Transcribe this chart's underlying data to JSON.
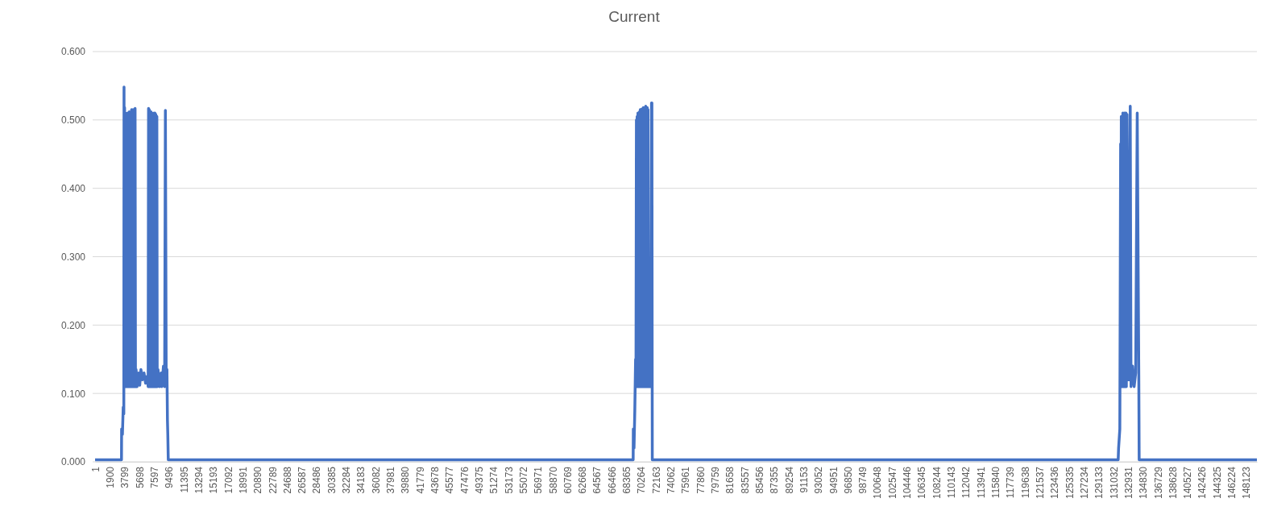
{
  "chart_data": {
    "type": "line",
    "title": "Current",
    "xlim": [
      1,
      149500
    ],
    "xticks": [
      1,
      1900,
      3799,
      5698,
      7597,
      9496,
      11395,
      13294,
      15193,
      17092,
      18991,
      20890,
      22789,
      24688,
      26587,
      28486,
      30385,
      32284,
      34183,
      36082,
      37981,
      39880,
      41779,
      43678,
      45577,
      47476,
      49375,
      51274,
      53173,
      55072,
      56971,
      58870,
      60769,
      62668,
      64567,
      66466,
      68365,
      70264,
      72163,
      74062,
      75961,
      77860,
      79759,
      81658,
      83557,
      85456,
      87355,
      89254,
      91153,
      93052,
      94951,
      96850,
      98749,
      100648,
      102547,
      104446,
      106345,
      108244,
      110143,
      112042,
      113941,
      115840,
      117739,
      119638,
      121537,
      123436,
      125335,
      127234,
      129133,
      131032,
      132931,
      134830,
      136729,
      138628,
      140527,
      142426,
      144325,
      146224,
      148123
    ],
    "ylim": [
      0,
      0.6
    ],
    "yticks": [
      {
        "value": 0,
        "label": "0.000"
      },
      {
        "value": 0.1,
        "label": "0.100"
      },
      {
        "value": 0.2,
        "label": "0.200"
      },
      {
        "value": 0.3,
        "label": "0.300"
      },
      {
        "value": 0.4,
        "label": "0.400"
      },
      {
        "value": 0.5,
        "label": "0.500"
      },
      {
        "value": 0.6,
        "label": "0.600"
      }
    ],
    "grid": "y",
    "series": [
      {
        "color": "#4472c4",
        "x": [
          1,
          3400,
          3416,
          3520,
          3623,
          3700,
          3727,
          3760,
          3800,
          3850,
          3900,
          3950,
          4000,
          4050,
          4100,
          4150,
          4200,
          4250,
          4300,
          4350,
          4400,
          4450,
          4500,
          4550,
          4600,
          4650,
          4700,
          4750,
          4800,
          4850,
          4900,
          4950,
          5000,
          5050,
          5150,
          5200,
          5280,
          5400,
          5600,
          5750,
          5900,
          6100,
          6300,
          6500,
          6700,
          6831,
          6880,
          6930,
          6980,
          7030,
          7100,
          7150,
          7200,
          7250,
          7320,
          7370,
          7450,
          7500,
          7580,
          7630,
          7700,
          7750,
          7820,
          7870,
          7950,
          8000,
          8100,
          8300,
          8500,
          8590,
          8800,
          8950,
          9050,
          9150,
          9250,
          9315,
          9360,
          9419,
          69240,
          69260,
          69350,
          69450,
          69550,
          69600,
          69656,
          69700,
          69750,
          69800,
          69850,
          69900,
          69950,
          70000,
          70050,
          70100,
          70150,
          70200,
          70250,
          70300,
          70350,
          70400,
          70450,
          70500,
          70550,
          70600,
          70650,
          70700,
          70750,
          70800,
          70850,
          70900,
          70950,
          71000,
          71050,
          71100,
          71150,
          71208,
          71500,
          71600,
          71650,
          71700,
          131650,
          131700,
          131860,
          131963,
          132000,
          132050,
          132100,
          132150,
          132200,
          132250,
          132300,
          132350,
          132400,
          132450,
          132500,
          132550,
          132600,
          132650,
          132700,
          132790,
          133000,
          133100,
          133200,
          133300,
          133500,
          133700,
          133900,
          134100,
          134300,
          134350,
          149500
        ],
        "values": [
          0.003,
          0.003,
          0.048,
          0.04,
          0.08,
          0.07,
          0.548,
          0.11,
          0.518,
          0.11,
          0.51,
          0.11,
          0.495,
          0.11,
          0.505,
          0.11,
          0.51,
          0.11,
          0.505,
          0.11,
          0.512,
          0.11,
          0.51,
          0.11,
          0.51,
          0.11,
          0.515,
          0.11,
          0.51,
          0.11,
          0.515,
          0.11,
          0.515,
          0.11,
          0.517,
          0.11,
          0.135,
          0.11,
          0.13,
          0.112,
          0.135,
          0.12,
          0.13,
          0.115,
          0.125,
          0.11,
          0.517,
          0.11,
          0.515,
          0.11,
          0.505,
          0.11,
          0.512,
          0.11,
          0.51,
          0.11,
          0.508,
          0.11,
          0.51,
          0.11,
          0.51,
          0.11,
          0.508,
          0.11,
          0.505,
          0.11,
          0.135,
          0.11,
          0.13,
          0.11,
          0.14,
          0.11,
          0.514,
          0.13,
          0.135,
          0.06,
          0.04,
          0.003,
          0.003,
          0.048,
          0.02,
          0.075,
          0.15,
          0.11,
          0.5,
          0.11,
          0.505,
          0.11,
          0.51,
          0.11,
          0.51,
          0.11,
          0.512,
          0.11,
          0.515,
          0.11,
          0.515,
          0.11,
          0.516,
          0.11,
          0.515,
          0.11,
          0.518,
          0.11,
          0.515,
          0.11,
          0.518,
          0.11,
          0.52,
          0.11,
          0.516,
          0.11,
          0.518,
          0.11,
          0.515,
          0.11,
          0.11,
          0.525,
          0.525,
          0.003,
          0.003,
          0.02,
          0.048,
          0.465,
          0.11,
          0.505,
          0.11,
          0.505,
          0.11,
          0.51,
          0.11,
          0.508,
          0.11,
          0.51,
          0.11,
          0.51,
          0.11,
          0.51,
          0.11,
          0.508,
          0.12,
          0.14,
          0.52,
          0.11,
          0.14,
          0.11,
          0.13,
          0.51,
          0.13,
          0.003,
          0.003
        ]
      }
    ]
  }
}
